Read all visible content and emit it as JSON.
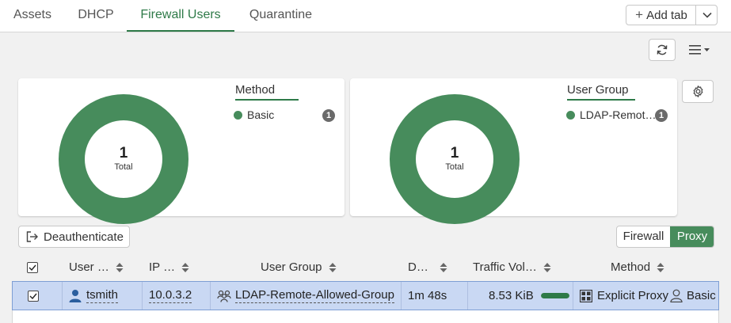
{
  "tabs": [
    {
      "label": "Assets"
    },
    {
      "label": "DHCP"
    },
    {
      "label": "Firewall Users",
      "active": true
    },
    {
      "label": "Quarantine"
    }
  ],
  "add_tab_label": "Add tab",
  "summary_cards": [
    {
      "total": "1",
      "total_label": "Total",
      "legend_title": "Method",
      "legend_items": [
        {
          "label": "Basic",
          "count": "1",
          "color": "#478c5c"
        }
      ]
    },
    {
      "total": "1",
      "total_label": "Total",
      "legend_title": "User Group",
      "legend_items": [
        {
          "label": "LDAP-Remot…",
          "count": "1",
          "color": "#478c5c"
        }
      ]
    }
  ],
  "deauth_label": "Deauthenticate",
  "view_toggle": {
    "options": [
      "Firewall",
      "Proxy"
    ],
    "selected": "Proxy"
  },
  "table": {
    "columns": [
      "User …",
      "IP …",
      "User Group",
      "D…",
      "Traffic Vol…",
      "Method"
    ],
    "rows": [
      {
        "checked": true,
        "user": "tsmith",
        "ip": "10.0.3.2",
        "user_group": "LDAP-Remote-Allowed-Group",
        "duration": "1m 48s",
        "traffic": "8.53 KiB",
        "traffic_fraction": 1.0,
        "method_type": "Explicit Proxy",
        "method_auth": "Basic"
      }
    ]
  },
  "colors": {
    "accent": "#2e7a48",
    "donut": "#478c5c",
    "selected_row": "#c9d8f3"
  },
  "icons": [
    "plus-icon",
    "chevron-down-icon",
    "refresh-icon",
    "menu-icon",
    "gear-icon",
    "logout-icon",
    "user-icon",
    "group-icon",
    "proxy-icon",
    "person-icon",
    "sort-icon",
    "checkbox-icon"
  ]
}
